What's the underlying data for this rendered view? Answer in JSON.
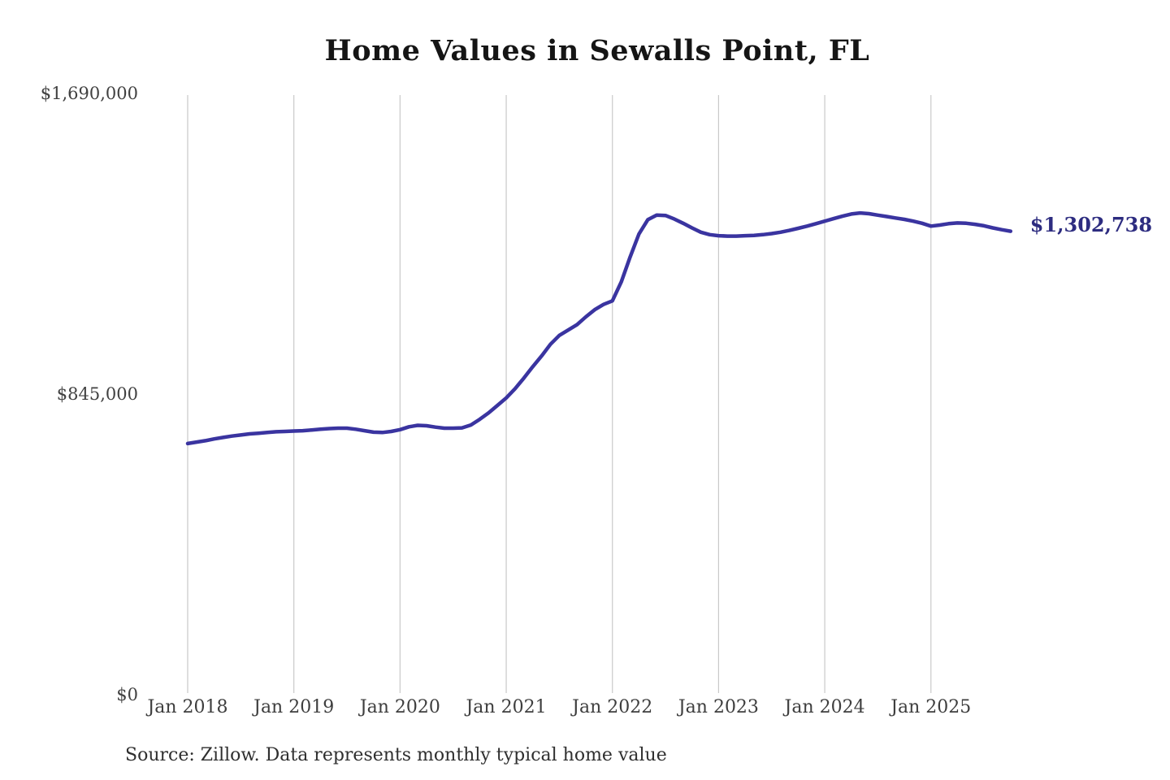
{
  "title": "Home Values in Sewalls Point, FL",
  "source_note": "Source: Zillow. Data represents monthly typical home value",
  "end_label": "$1,302,738",
  "colors": {
    "line": "#3a34a0",
    "end_label": "#2d2c80",
    "gridline": "#c9c9c9",
    "axis_text": "#3e3e3e",
    "title_text": "#151515"
  },
  "chart_data": {
    "type": "line",
    "title": "Home Values in Sewalls Point, FL",
    "xlabel": "",
    "ylabel": "",
    "x_tick_labels": [
      "Jan 2018",
      "Jan 2019",
      "Jan 2020",
      "Jan 2021",
      "Jan 2022",
      "Jan 2023",
      "Jan 2024",
      "Jan 2025"
    ],
    "y_tick_labels": [
      "$1,690,000",
      "$845,000",
      "$0"
    ],
    "y_tick_values": [
      1690000,
      845000,
      0
    ],
    "ylim": [
      0,
      1690000
    ],
    "grid": "vertical-only",
    "legend": "none",
    "x_start": "Jan 2018",
    "x_end": "Oct 2025",
    "x_interval": "monthly",
    "last_value": 1302738,
    "last_value_label": "$1,302,738",
    "series": [
      {
        "name": "Typical home value",
        "values": [
          706000,
          710000,
          714000,
          719000,
          723000,
          727000,
          730000,
          733000,
          735000,
          737000,
          739000,
          740000,
          741000,
          742000,
          744000,
          746000,
          748000,
          749000,
          749000,
          746000,
          742000,
          738000,
          737000,
          740000,
          745000,
          753000,
          757000,
          756000,
          752000,
          749000,
          749000,
          750000,
          758000,
          774000,
          792000,
          813000,
          834000,
          860000,
          890000,
          922000,
          952000,
          985000,
          1010000,
          1025000,
          1040000,
          1062000,
          1082000,
          1097000,
          1107000,
          1160000,
          1230000,
          1295000,
          1335000,
          1348000,
          1347000,
          1337000,
          1325000,
          1312000,
          1300000,
          1293000,
          1290000,
          1289000,
          1289000,
          1290000,
          1291000,
          1293000,
          1296000,
          1300000,
          1305000,
          1311000,
          1317000,
          1324000,
          1331000,
          1338000,
          1345000,
          1351000,
          1354000,
          1352000,
          1348000,
          1344000,
          1340000,
          1336000,
          1331000,
          1325000,
          1317000,
          1320000,
          1324000,
          1326000,
          1325000,
          1322000,
          1318000,
          1312000,
          1307000,
          1302738
        ]
      }
    ]
  }
}
